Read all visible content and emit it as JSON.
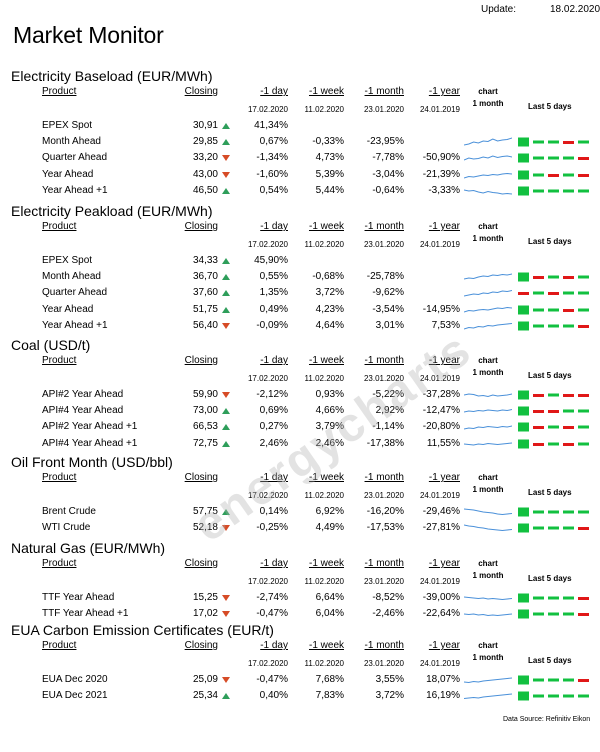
{
  "header": {
    "update_label": "Update:",
    "update_value": "18.02.2020",
    "title": "Market Monitor"
  },
  "cols": {
    "product": "Product",
    "closing": "Closing",
    "d1": "-1 day",
    "w1": "-1 week",
    "m1": "-1 month",
    "y1": "-1 year",
    "chart": "chart",
    "month": "1 month",
    "last5": "Last 5  days"
  },
  "dates": {
    "d1": "17.02.2020",
    "w1": "11.02.2020",
    "m1": "23.01.2020",
    "y1": "24.01.2019"
  },
  "colors": {
    "up": "#2e9e5a",
    "down": "#d64b26",
    "bar_up": "#12c040",
    "bar_down": "#e01818",
    "spark": "#4a90d9"
  },
  "watermark": "energycharts",
  "source": "Data Source: Refinitiv Eikon",
  "sections": [
    {
      "title": "Electricity Baseload (EUR/MWh)",
      "rows": [
        {
          "product": "EPEX Spot",
          "closing": "30,91",
          "trend": "up",
          "d1": "41,34%",
          "w1": "",
          "m1": "",
          "y1": "",
          "spark": [],
          "bars": []
        },
        {
          "product": "Month Ahead",
          "closing": "29,85",
          "trend": "up",
          "d1": "0,67%",
          "w1": "-0,33%",
          "m1": "-23,95%",
          "y1": "",
          "spark": [
            0.2,
            0.3,
            0.5,
            0.4,
            0.6,
            0.55,
            0.8,
            0.6,
            0.7,
            0.75,
            0.9
          ],
          "bars": [
            1,
            1,
            1,
            -1,
            1
          ]
        },
        {
          "product": "Quarter Ahead",
          "closing": "33,20",
          "trend": "down",
          "d1": "-1,34%",
          "w1": "4,73%",
          "m1": "-7,78%",
          "y1": "-50,90%",
          "spark": [
            0.3,
            0.5,
            0.4,
            0.45,
            0.6,
            0.5,
            0.7,
            0.55,
            0.65,
            0.7,
            0.6
          ],
          "bars": [
            1,
            1,
            1,
            1,
            -1
          ]
        },
        {
          "product": "Year Ahead",
          "closing": "43,00",
          "trend": "down",
          "d1": "-1,60%",
          "w1": "5,39%",
          "m1": "-3,04%",
          "y1": "-21,39%",
          "spark": [
            0.2,
            0.35,
            0.3,
            0.4,
            0.5,
            0.45,
            0.55,
            0.5,
            0.6,
            0.65,
            0.6
          ],
          "bars": [
            1,
            1,
            -1,
            1,
            -1
          ]
        },
        {
          "product": "Year  Ahead +1",
          "closing": "46,50",
          "trend": "up",
          "d1": "0,54%",
          "w1": "5,44%",
          "m1": "-0,64%",
          "y1": "-3,33%",
          "spark": [
            0.6,
            0.5,
            0.55,
            0.4,
            0.3,
            0.45,
            0.35,
            0.3,
            0.2,
            0.25,
            0.2
          ],
          "bars": [
            1,
            1,
            1,
            1,
            1
          ]
        }
      ]
    },
    {
      "title": "Electricity Peakload (EUR/MWh)",
      "rows": [
        {
          "product": "EPEX Spot",
          "closing": "34,33",
          "trend": "up",
          "d1": "45,90%",
          "w1": "",
          "m1": "",
          "y1": "",
          "spark": [],
          "bars": []
        },
        {
          "product": "Month Ahead",
          "closing": "36,70",
          "trend": "up",
          "d1": "0,55%",
          "w1": "-0,68%",
          "m1": "-25,78%",
          "y1": "",
          "spark": [
            0.3,
            0.4,
            0.35,
            0.5,
            0.6,
            0.55,
            0.7,
            0.65,
            0.75,
            0.7,
            0.8
          ],
          "bars": [
            1,
            -1,
            1,
            -1,
            1
          ]
        },
        {
          "product": "Quarter Ahead",
          "closing": "37,60",
          "trend": "up",
          "d1": "1,35%",
          "w1": "3,72%",
          "m1": "-9,62%",
          "y1": "",
          "spark": [
            0.2,
            0.3,
            0.4,
            0.35,
            0.5,
            0.45,
            0.6,
            0.55,
            0.7,
            0.65,
            0.75
          ],
          "bars": [
            -1,
            1,
            -1,
            1,
            1
          ]
        },
        {
          "product": "Year Ahead",
          "closing": "51,75",
          "trend": "up",
          "d1": "0,49%",
          "w1": "4,23%",
          "m1": "-3,54%",
          "y1": "-14,95%",
          "spark": [
            0.3,
            0.45,
            0.4,
            0.5,
            0.55,
            0.5,
            0.6,
            0.7,
            0.65,
            0.75,
            0.7
          ],
          "bars": [
            1,
            1,
            1,
            -1,
            1
          ]
        },
        {
          "product": "Year  Ahead +1",
          "closing": "56,40",
          "trend": "down",
          "d1": "-0,09%",
          "w1": "4,64%",
          "m1": "3,01%",
          "y1": "7,53%",
          "spark": [
            0.2,
            0.35,
            0.3,
            0.45,
            0.4,
            0.55,
            0.5,
            0.6,
            0.65,
            0.7,
            0.75
          ],
          "bars": [
            1,
            1,
            1,
            1,
            -1
          ]
        }
      ]
    },
    {
      "title": "Coal (USD/t)",
      "rows": [
        {
          "product": "API#2 Year Ahead",
          "closing": "59,90",
          "trend": "down",
          "d1": "-2,12%",
          "w1": "0,93%",
          "m1": "-5,22%",
          "y1": "-37,28%",
          "spark": [
            0.5,
            0.6,
            0.55,
            0.4,
            0.45,
            0.35,
            0.5,
            0.4,
            0.45,
            0.5,
            0.6
          ],
          "bars": [
            1,
            -1,
            1,
            -1,
            -1
          ]
        },
        {
          "product": "API#4 Year Ahead",
          "closing": "73,00",
          "trend": "up",
          "d1": "0,69%",
          "w1": "4,66%",
          "m1": "2,92%",
          "y1": "-12,47%",
          "spark": [
            0.4,
            0.5,
            0.45,
            0.55,
            0.5,
            0.6,
            0.55,
            0.5,
            0.6,
            0.55,
            0.65
          ],
          "bars": [
            1,
            -1,
            -1,
            1,
            1
          ]
        },
        {
          "product": "API#2 Year Ahead +1",
          "closing": "66,53",
          "trend": "up",
          "d1": "0,27%",
          "w1": "3,79%",
          "m1": "-1,14%",
          "y1": "-20,80%",
          "spark": [
            0.3,
            0.4,
            0.35,
            0.5,
            0.45,
            0.55,
            0.5,
            0.45,
            0.55,
            0.5,
            0.6
          ],
          "bars": [
            1,
            -1,
            1,
            -1,
            1
          ]
        },
        {
          "product": "API#4 Year Ahead +1",
          "closing": "72,75",
          "trend": "up",
          "d1": "2,46%",
          "w1": "2,46%",
          "m1": "-17,38%",
          "y1": "11,55%",
          "spark": [
            0.5,
            0.45,
            0.4,
            0.5,
            0.45,
            0.55,
            0.5,
            0.45,
            0.5,
            0.55,
            0.6
          ],
          "bars": [
            1,
            -1,
            1,
            -1,
            1
          ]
        }
      ]
    },
    {
      "title": "Oil Front Month (USD/bbl)",
      "rows": [
        {
          "product": "Brent Crude",
          "closing": "57,75",
          "trend": "up",
          "d1": "0,14%",
          "w1": "6,92%",
          "m1": "-16,20%",
          "y1": "-29,46%",
          "spark": [
            0.8,
            0.75,
            0.7,
            0.6,
            0.5,
            0.45,
            0.4,
            0.3,
            0.25,
            0.3,
            0.35
          ],
          "bars": [
            1,
            1,
            1,
            1,
            1
          ]
        },
        {
          "product": "WTI Crude",
          "closing": "52,18",
          "trend": "down",
          "d1": "-0,25%",
          "w1": "4,49%",
          "m1": "-17,53%",
          "y1": "-27,81%",
          "spark": [
            0.8,
            0.7,
            0.65,
            0.55,
            0.5,
            0.4,
            0.35,
            0.3,
            0.25,
            0.3,
            0.35
          ],
          "bars": [
            1,
            1,
            1,
            1,
            -1
          ]
        }
      ]
    },
    {
      "title": "Natural Gas (EUR/MWh)",
      "rows": [
        {
          "product": "TTF Year Ahead",
          "closing": "15,25",
          "trend": "down",
          "d1": "-2,74%",
          "w1": "6,64%",
          "m1": "-8,52%",
          "y1": "-39,00%",
          "spark": [
            0.6,
            0.55,
            0.5,
            0.45,
            0.5,
            0.4,
            0.45,
            0.4,
            0.35,
            0.4,
            0.45
          ],
          "bars": [
            1,
            1,
            1,
            1,
            -1
          ]
        },
        {
          "product": "TTF Year Ahead +1",
          "closing": "17,02",
          "trend": "down",
          "d1": "-0,47%",
          "w1": "6,04%",
          "m1": "-2,46%",
          "y1": "-22,64%",
          "spark": [
            0.5,
            0.45,
            0.5,
            0.4,
            0.45,
            0.35,
            0.4,
            0.35,
            0.4,
            0.45,
            0.5
          ],
          "bars": [
            1,
            1,
            1,
            1,
            -1
          ]
        }
      ]
    },
    {
      "title": "EUA Carbon Emission Certificates (EUR/t)",
      "rows": [
        {
          "product": "EUA Dec 2020",
          "closing": "25,09",
          "trend": "down",
          "d1": "-0,47%",
          "w1": "7,68%",
          "m1": "3,55%",
          "y1": "18,07%",
          "spark": [
            0.3,
            0.25,
            0.35,
            0.3,
            0.4,
            0.45,
            0.5,
            0.55,
            0.6,
            0.65,
            0.7
          ],
          "bars": [
            1,
            1,
            1,
            1,
            -1
          ]
        },
        {
          "product": "EUA Dec 2021",
          "closing": "25,34",
          "trend": "up",
          "d1": "0,40%",
          "w1": "7,83%",
          "m1": "3,72%",
          "y1": "16,19%",
          "spark": [
            0.25,
            0.3,
            0.35,
            0.3,
            0.4,
            0.45,
            0.5,
            0.55,
            0.6,
            0.65,
            0.7
          ],
          "bars": [
            1,
            1,
            1,
            1,
            1
          ]
        }
      ]
    }
  ]
}
